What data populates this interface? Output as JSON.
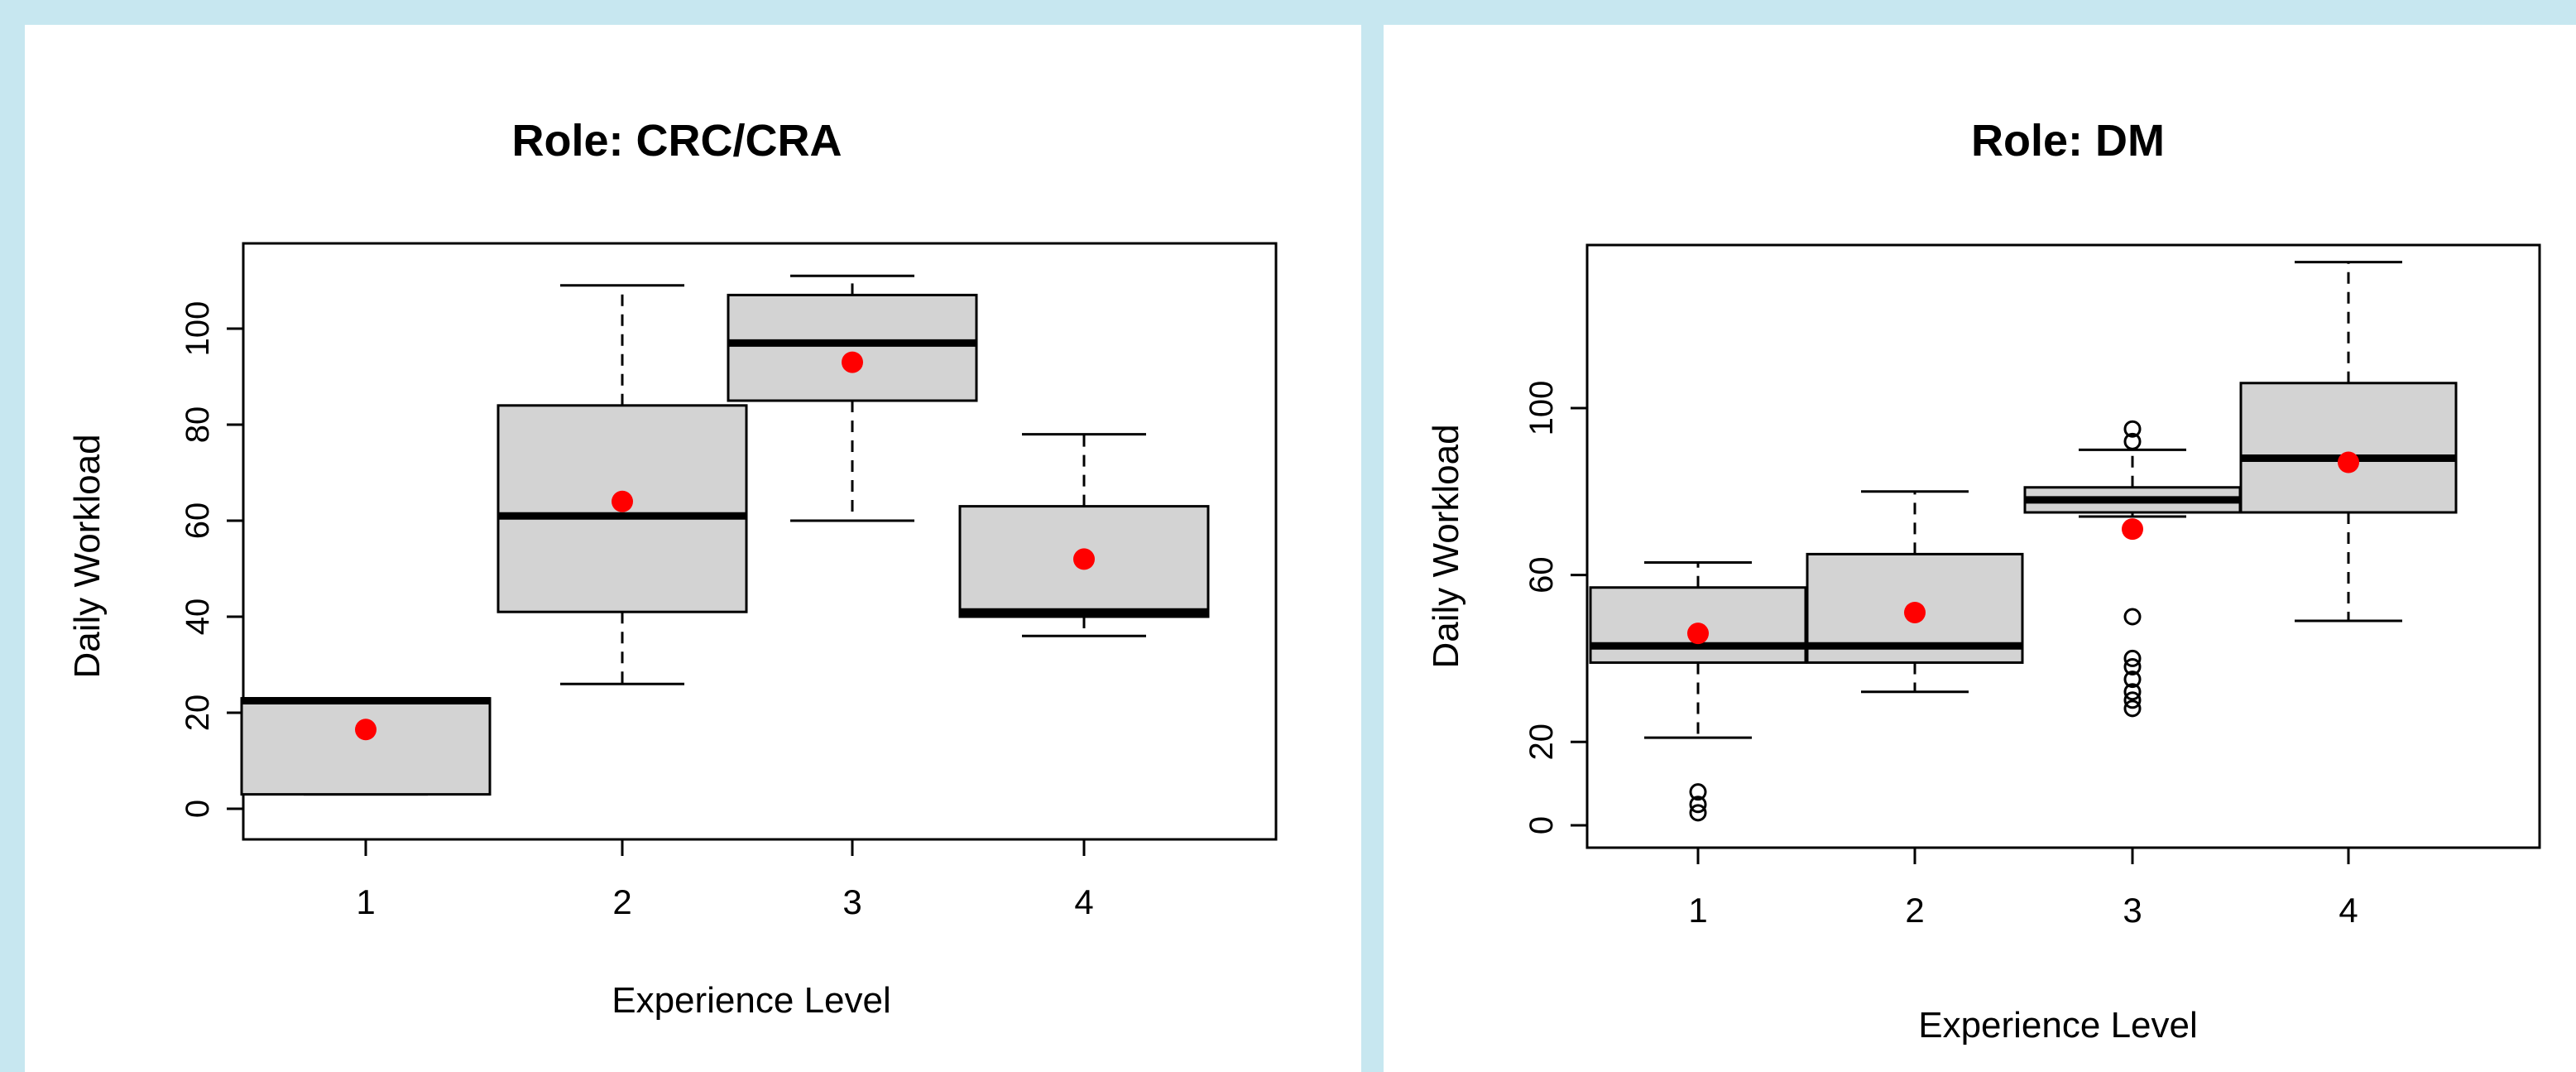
{
  "colors": {
    "background": "#c7e7f0",
    "panel": "#ffffff",
    "box_fill": "#d3d3d3",
    "mean_point": "#ff0000",
    "stroke": "#000000"
  },
  "chart_data": [
    {
      "type": "boxplot",
      "title": "Role: CRC/CRA",
      "xlabel": "Experience Level",
      "ylabel": "Daily Workload",
      "categories": [
        "1",
        "2",
        "3",
        "4"
      ],
      "yticks": [
        "0",
        "20",
        "40",
        "60",
        "80",
        "100"
      ],
      "ylim": [
        -4,
        115
      ],
      "grid": false,
      "boxes": [
        {
          "category": "1",
          "whisker_low": 3,
          "q1": 3,
          "median": 22.5,
          "q3": 23,
          "whisker_high": 23,
          "mean": 16.5,
          "outliers": []
        },
        {
          "category": "2",
          "whisker_low": 26,
          "q1": 41,
          "median": 61,
          "q3": 84,
          "whisker_high": 109,
          "mean": 64,
          "outliers": []
        },
        {
          "category": "3",
          "whisker_low": 60,
          "q1": 85,
          "median": 97,
          "q3": 107,
          "whisker_high": 111,
          "mean": 93,
          "outliers": []
        },
        {
          "category": "4",
          "whisker_low": 36,
          "q1": 40,
          "median": 41,
          "q3": 63,
          "whisker_high": 78,
          "mean": 52,
          "outliers": []
        }
      ]
    },
    {
      "type": "boxplot",
      "title": "Role: DM",
      "xlabel": "Experience Level",
      "ylabel": "Daily Workload",
      "categories": [
        "1",
        "2",
        "3",
        "4"
      ],
      "yticks": [
        "0",
        "20",
        "60",
        "100"
      ],
      "ylim": [
        -5,
        145
      ],
      "grid": false,
      "boxes": [
        {
          "category": "1",
          "whisker_low": 21,
          "q1": 39,
          "median": 43,
          "q3": 57,
          "whisker_high": 63,
          "mean": 46,
          "outliers": [
            3,
            5,
            8
          ]
        },
        {
          "category": "2",
          "whisker_low": 32,
          "q1": 39,
          "median": 43,
          "q3": 65,
          "whisker_high": 80,
          "mean": 51,
          "outliers": []
        },
        {
          "category": "3",
          "whisker_low": 74,
          "q1": 75,
          "median": 78,
          "q3": 81,
          "whisker_high": 90,
          "mean": 71,
          "outliers": [
            28,
            30,
            32,
            35,
            38,
            40,
            50,
            92,
            95
          ]
        },
        {
          "category": "4",
          "whisker_low": 49,
          "q1": 75,
          "median": 88,
          "q3": 106,
          "whisker_high": 135,
          "mean": 87,
          "outliers": []
        }
      ]
    }
  ]
}
